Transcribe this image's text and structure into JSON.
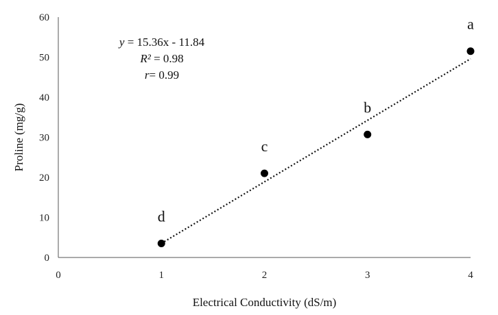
{
  "chart_data": {
    "type": "scatter",
    "xlabel": "Electrical Conductivity (dS/m)",
    "ylabel": "Proline (mg/g)",
    "xlim": [
      0,
      4
    ],
    "ylim": [
      0,
      60
    ],
    "x_ticks": [
      "0",
      "1",
      "2",
      "3",
      "4"
    ],
    "y_ticks": [
      "0",
      "10",
      "20",
      "30",
      "40",
      "50",
      "60"
    ],
    "grid": false,
    "legend": "none",
    "points": [
      {
        "x": 1,
        "y": 3.5,
        "label": "d"
      },
      {
        "x": 2,
        "y": 21.0,
        "label": "c"
      },
      {
        "x": 3,
        "y": 30.7,
        "label": "b"
      },
      {
        "x": 4,
        "y": 51.5,
        "label": "a"
      }
    ],
    "trendline": {
      "style": "dotted",
      "slope": 15.36,
      "intercept": -11.84,
      "x_range": [
        1,
        4
      ]
    },
    "annotations": {
      "equation_var": "y",
      "equation_rest": " = 15.36x - 11.84",
      "r2_var": "R²",
      "r2_rest": " = 0.98",
      "r_var": "r",
      "r_rest": "= 0.99"
    },
    "colors": {
      "marker": "#000000",
      "axis": "#555555"
    }
  }
}
